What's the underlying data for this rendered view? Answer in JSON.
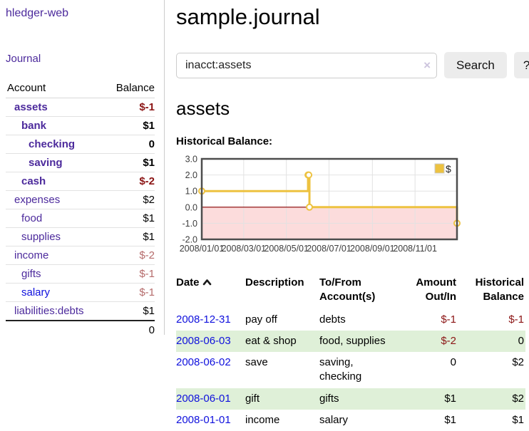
{
  "sidebar": {
    "app_title": "hledger-web",
    "nav_journal": "Journal",
    "accounts_table": {
      "header_account": "Account",
      "header_balance": "Balance",
      "rows": [
        {
          "name": "assets",
          "name_class": "lvl0 bold acct-link",
          "balance": "$-1",
          "balance_class": "bold neg-strong"
        },
        {
          "name": "bank",
          "name_class": "lvl1 bold acct-link",
          "balance": "$1",
          "balance_class": "bold"
        },
        {
          "name": "checking",
          "name_class": "lvl2 bold acct-link",
          "balance": "0",
          "balance_class": "bold"
        },
        {
          "name": "saving",
          "name_class": "lvl2 bold acct-link",
          "balance": "$1",
          "balance_class": "bold"
        },
        {
          "name": "cash",
          "name_class": "lvl1 bold acct-link",
          "balance": "$-2",
          "balance_class": "bold neg-strong"
        },
        {
          "name": "expenses",
          "name_class": "lvl0 acct-link",
          "balance": "$2",
          "balance_class": ""
        },
        {
          "name": "food",
          "name_class": "lvl1 acct-link",
          "balance": "$1",
          "balance_class": ""
        },
        {
          "name": "supplies",
          "name_class": "lvl1 acct-link",
          "balance": "$1",
          "balance_class": ""
        },
        {
          "name": "income",
          "name_class": "lvl0 acct-link",
          "balance": "$-2",
          "balance_class": "neg-soft"
        },
        {
          "name": "gifts",
          "name_class": "lvl1 acct-link",
          "balance": "$-1",
          "balance_class": "neg-soft"
        },
        {
          "name": "salary",
          "name_class": "lvl1 blue",
          "balance": "$-1",
          "balance_class": "neg-soft"
        },
        {
          "name": "liabilities:debts",
          "name_class": "lvl0 acct-link",
          "balance": "$1",
          "balance_class": ""
        }
      ],
      "total": "0"
    }
  },
  "main": {
    "page_title": "sample.journal",
    "search": {
      "value": "inacct:assets",
      "clear_icon": "×",
      "search_button": "Search",
      "help_button": "?"
    },
    "account_heading": "assets",
    "chart_label": "Historical Balance:"
  },
  "chart_data": {
    "type": "line",
    "step": true,
    "title": "Historical Balance",
    "series": [
      {
        "name": "$",
        "color": "#edc240",
        "points": [
          [
            "2008-01-01",
            1
          ],
          [
            "2008-06-01",
            2
          ],
          [
            "2008-06-02",
            2
          ],
          [
            "2008-06-03",
            0
          ],
          [
            "2008-12-31",
            -1
          ]
        ]
      }
    ],
    "x_start": "2008-01-01",
    "x_end": "2008-12-31",
    "xticks": [
      "2008/01/01",
      "2008/03/01",
      "2008/05/01",
      "2008/07/01",
      "2008/09/01",
      "2008/11/01"
    ],
    "yticks": [
      "3.0",
      "2.0",
      "1.0",
      "0.0",
      "-1.0",
      "-2.0"
    ],
    "ylim": [
      -2,
      3
    ],
    "grid": true,
    "legend_position": "top-right",
    "negative_fill": "#fcdcdc",
    "zero_line_color": "#8b0000",
    "border_color": "#4d4d4d",
    "grid_color": "#e2e2e2",
    "tick_color": "#3c3c3c"
  },
  "register": {
    "headers": {
      "date": "Date",
      "description": "Description",
      "accounts": "To/From Account(s)",
      "amount": "Amount Out/In",
      "balance": "Historical Balance"
    },
    "rows": [
      {
        "date": "2008-12-31",
        "description": "pay off",
        "accounts": "debts",
        "amount": "$-1",
        "amount_class": "neg-strong",
        "balance": "$-1",
        "balance_class": "neg-strong"
      },
      {
        "date": "2008-06-03",
        "description": "eat & shop",
        "accounts": "food, supplies",
        "amount": "$-2",
        "amount_class": "neg-strong",
        "balance": "0",
        "balance_class": ""
      },
      {
        "date": "2008-06-02",
        "description": "save",
        "accounts": "saving, checking",
        "amount": "0",
        "amount_class": "",
        "balance": "$2",
        "balance_class": ""
      },
      {
        "date": "2008-06-01",
        "description": "gift",
        "accounts": "gifts",
        "amount": "$1",
        "amount_class": "",
        "balance": "$2",
        "balance_class": ""
      },
      {
        "date": "2008-01-01",
        "description": "income",
        "accounts": "salary",
        "amount": "$1",
        "amount_class": "",
        "balance": "$1",
        "balance_class": ""
      }
    ]
  }
}
